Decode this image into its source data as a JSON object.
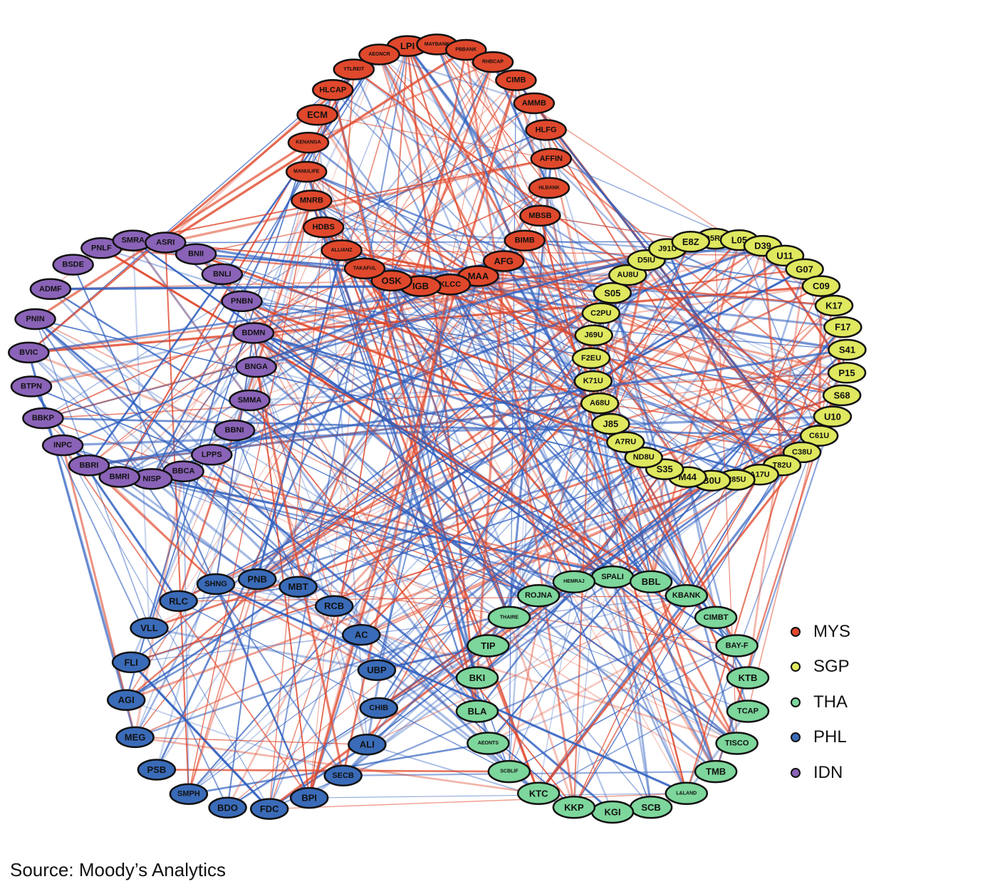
{
  "groups": [
    {
      "id": "MYS",
      "label": "MYS",
      "color": "#e0482c",
      "nodes": [
        "LPI",
        "MAYBANK",
        "PBBANK",
        "RHBCAP",
        "CIMB",
        "AMMB",
        "HLFG",
        "AFFIN",
        "HLBANK",
        "MBSB",
        "BIMB",
        "AFG",
        "MAA",
        "KLCC",
        "IGB",
        "OSK",
        "TAKAFUL",
        "ALLIANZ",
        "HDBS",
        "MNRB",
        "MANULIFE",
        "KENANGA",
        "ECM",
        "HLCAP",
        "YTLREIT",
        "AEONCR"
      ]
    },
    {
      "id": "SGP",
      "label": "SGP",
      "color": "#dfe85f",
      "nodes": [
        "O5RU",
        "L05",
        "D39",
        "U11",
        "G07",
        "C09",
        "K17",
        "F17",
        "S41",
        "P15",
        "S68",
        "U10",
        "C61U",
        "C38U",
        "T82U",
        "A17U",
        "R85U",
        "B0U",
        "M44",
        "S35",
        "ND8U",
        "A7RU",
        "J85",
        "A68U",
        "K71U",
        "F2EU",
        "J69U",
        "C2PU",
        "S05",
        "AU8U",
        "D5IU",
        "J91U",
        "E8Z"
      ]
    },
    {
      "id": "THA",
      "label": "THA",
      "color": "#7dd69b",
      "nodes": [
        "SPALI",
        "BBL",
        "KBANK",
        "CIMBT",
        "BAY-F",
        "KTB",
        "TCAP",
        "TISCO",
        "TMB",
        "L&LAND",
        "SCB",
        "KGI",
        "KKP",
        "KTC",
        "SCBLIF",
        "AEONTS",
        "BLA",
        "BKI",
        "TIP",
        "THAIRE",
        "ROJNA",
        "HEMRAJ"
      ]
    },
    {
      "id": "PHL",
      "label": "PHL",
      "color": "#3a6bb8",
      "nodes": [
        "PNB",
        "MBT",
        "RCB",
        "AC",
        "UBP",
        "CHIB",
        "ALI",
        "SECB",
        "BPI",
        "FDC",
        "BDO",
        "SMPH",
        "PSB",
        "MEG",
        "AGI",
        "FLI",
        "VLL",
        "RLC",
        "SHNG"
      ]
    },
    {
      "id": "IDN",
      "label": "IDN",
      "color": "#8a63b8",
      "nodes": [
        "BNII",
        "BNLI",
        "PNBN",
        "BDMN",
        "BNGA",
        "SMMA",
        "BBNI",
        "LPPS",
        "BBCA",
        "NISP",
        "BMRI",
        "BBRI",
        "INPC",
        "BBKP",
        "BTPN",
        "BVIC",
        "PNIN",
        "ADMF",
        "BSDE",
        "PNLF",
        "SMRA",
        "ASRI"
      ]
    }
  ],
  "edge_colors": {
    "red": "#e0482c",
    "blue": "#2f5fbf"
  },
  "source_note": "Source: Moody’s Analytics"
}
